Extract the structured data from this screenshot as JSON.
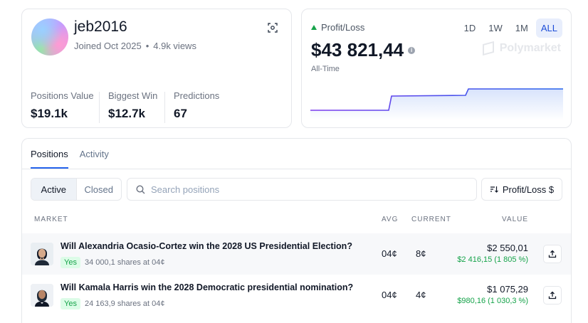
{
  "profile": {
    "username": "jeb2016",
    "joined": "Joined Oct 2025",
    "separator": "•",
    "views": "4.9k views",
    "stats": [
      {
        "label": "Positions Value",
        "value": "$19.1k"
      },
      {
        "label": "Biggest Win",
        "value": "$12.7k"
      },
      {
        "label": "Predictions",
        "value": "67"
      }
    ]
  },
  "pl": {
    "label": "Profit/Loss",
    "amount": "$43 821,44",
    "period": "All-Time",
    "brand": "Polymarket",
    "ranges": [
      "1D",
      "1W",
      "1M",
      "ALL"
    ],
    "active_range": "ALL",
    "colors": {
      "line_start": "#7c3aed",
      "line_end": "#2563eb",
      "up": "#16a34a"
    }
  },
  "positions": {
    "tabs": [
      "Positions",
      "Activity"
    ],
    "filters": [
      "Active",
      "Closed"
    ],
    "search_placeholder": "Search positions",
    "sort_label": "Profit/Loss $",
    "headers": {
      "market": "MARKET",
      "avg": "AVG",
      "current": "CURRENT",
      "value": "VALUE"
    },
    "rows": [
      {
        "question": "Will Alexandria Ocasio-Cortez win the 2028 US Presidential Election?",
        "outcome": "Yes",
        "shares": "34 000,1 shares at 04¢",
        "avg": "04¢",
        "current": "8¢",
        "value": "$2 550,01",
        "gain": "$2 416,15 (1 805 %)"
      },
      {
        "question": "Will Kamala Harris win the 2028 Democratic presidential nomination?",
        "outcome": "Yes",
        "shares": "24 163,9 shares at 04¢",
        "avg": "04¢",
        "current": "4¢",
        "value": "$1 075,29",
        "gain": "$980,16 (1 030,3 %)"
      }
    ]
  }
}
